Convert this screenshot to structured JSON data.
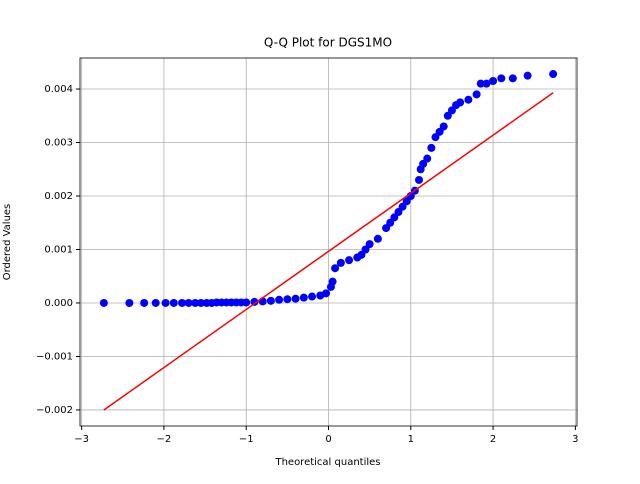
{
  "chart_data": {
    "type": "scatter",
    "title": "Q-Q Plot for DGS1MO",
    "x_label": "Theoretical quantiles",
    "y_label": "Ordered Values",
    "x": [
      -2.73,
      -2.42,
      -2.24,
      -2.1,
      -1.98,
      -1.88,
      -1.78,
      -1.7,
      -1.62,
      -1.55,
      -1.48,
      -1.42,
      -1.36,
      -1.3,
      -1.24,
      -1.18,
      -1.12,
      -1.06,
      -1.0,
      -0.9,
      -0.8,
      -0.7,
      -0.6,
      -0.5,
      -0.4,
      -0.3,
      -0.2,
      -0.1,
      -0.03,
      0.03,
      0.05,
      0.08,
      0.15,
      0.25,
      0.35,
      0.4,
      0.45,
      0.5,
      0.6,
      0.7,
      0.75,
      0.8,
      0.85,
      0.9,
      0.95,
      1.0,
      1.05,
      1.1,
      1.12,
      1.15,
      1.2,
      1.25,
      1.3,
      1.35,
      1.4,
      1.45,
      1.5,
      1.55,
      1.6,
      1.7,
      1.8,
      1.85,
      1.92,
      2.0,
      2.1,
      2.24,
      2.42,
      2.73
    ],
    "values": [
      0,
      0,
      0,
      0,
      0,
      0,
      0,
      0,
      0,
      0,
      0,
      0,
      1e-05,
      1e-05,
      1e-05,
      1e-05,
      1e-05,
      1e-05,
      1e-05,
      2e-05,
      3e-05,
      4e-05,
      6e-05,
      7e-05,
      8e-05,
      0.0001,
      0.00012,
      0.00014,
      0.00018,
      0.0003,
      0.0004,
      0.00065,
      0.00075,
      0.0008,
      0.00085,
      0.0009,
      0.001,
      0.0011,
      0.0012,
      0.0014,
      0.0015,
      0.0016,
      0.0017,
      0.0018,
      0.0019,
      0.002,
      0.0021,
      0.0023,
      0.0025,
      0.0026,
      0.0027,
      0.0029,
      0.0031,
      0.0032,
      0.0033,
      0.0035,
      0.0036,
      0.0037,
      0.00375,
      0.0038,
      0.0039,
      0.0041,
      0.0041,
      0.00415,
      0.0042,
      0.0042,
      0.00425,
      0.00428
    ],
    "color": "#0000ff",
    "fit_line": {
      "x": [
        -2.73,
        2.73
      ],
      "values": [
        -0.002,
        0.00393
      ],
      "color": "#ff0000"
    },
    "xlim": [
      -3.02,
      3.02
    ],
    "xticks": [
      {
        "value": -3,
        "label": "−3"
      },
      {
        "value": -2,
        "label": "−2"
      },
      {
        "value": -1,
        "label": "−1"
      },
      0,
      1,
      2,
      3
    ],
    "ylim": [
      -0.0023,
      0.00458
    ],
    "yticks": [
      {
        "value": -0.002,
        "label": "−0.002"
      },
      {
        "value": -0.001,
        "label": "−0.001"
      },
      {
        "value": 0,
        "label": "0.000"
      },
      0.001,
      0.002,
      0.003,
      0.004
    ],
    "grid": true
  }
}
